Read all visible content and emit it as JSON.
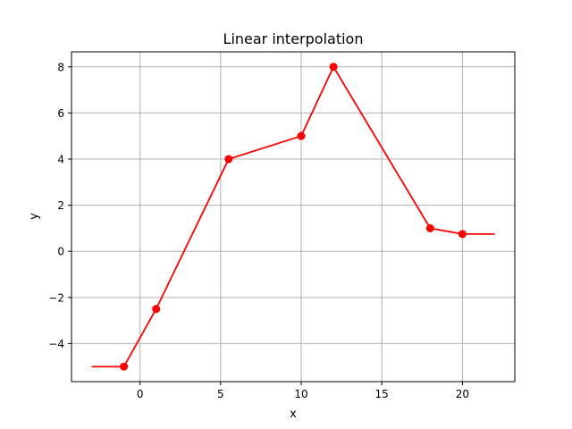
{
  "chart_data": {
    "type": "line",
    "title": "Linear interpolation",
    "xlabel": "x",
    "ylabel": "y",
    "xlim": [
      -4.25,
      23.25
    ],
    "ylim": [
      -5.65,
      8.65
    ],
    "xticks": [
      0,
      5,
      10,
      15,
      20
    ],
    "yticks": [
      -4,
      -2,
      0,
      2,
      4,
      6,
      8
    ],
    "xtick_labels": [
      "0",
      "5",
      "10",
      "15",
      "20"
    ],
    "ytick_labels": [
      "−4",
      "−2",
      "0",
      "2",
      "4",
      "6",
      "8"
    ],
    "grid": true,
    "color": "#ff0000",
    "line": {
      "x": [
        -3,
        -1,
        1,
        5.5,
        10,
        12,
        18,
        20,
        22
      ],
      "y": [
        -5,
        -5,
        -2.5,
        4,
        5,
        8,
        1,
        0.75,
        0.75
      ]
    },
    "points": {
      "x": [
        -1,
        1,
        5.5,
        10,
        12,
        18,
        20
      ],
      "y": [
        -5,
        -2.5,
        4,
        5,
        8,
        1,
        0.75
      ]
    }
  }
}
